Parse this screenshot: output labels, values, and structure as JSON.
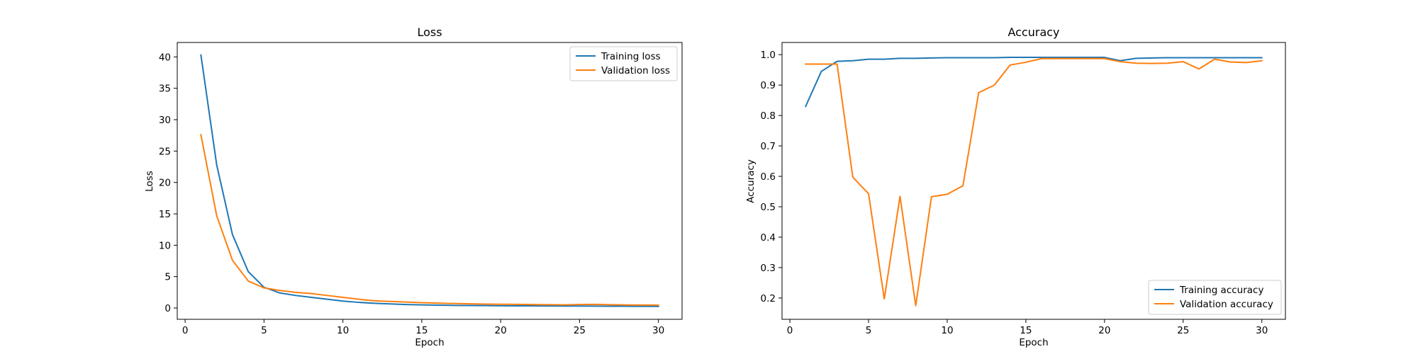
{
  "chart_data": [
    {
      "type": "line",
      "title": "Loss",
      "xlabel": "Epoch",
      "ylabel": "Loss",
      "xlim": [
        -0.5,
        31.5
      ],
      "ylim": [
        -1.8,
        42.3
      ],
      "xticks": [
        0,
        5,
        10,
        15,
        20,
        25,
        30
      ],
      "yticks": [
        0,
        5,
        10,
        15,
        20,
        25,
        30,
        35,
        40
      ],
      "grid": false,
      "legend_position": "upper right",
      "x": [
        1,
        2,
        3,
        4,
        5,
        6,
        7,
        8,
        9,
        10,
        11,
        12,
        13,
        14,
        15,
        16,
        17,
        18,
        19,
        20,
        21,
        22,
        23,
        24,
        25,
        26,
        27,
        28,
        29,
        30
      ],
      "series": [
        {
          "name": "Training loss",
          "color": "#1f77b4",
          "values": [
            40.3,
            22.8,
            11.7,
            5.8,
            3.3,
            2.4,
            2.0,
            1.7,
            1.4,
            1.1,
            0.9,
            0.75,
            0.65,
            0.55,
            0.5,
            0.45,
            0.42,
            0.4,
            0.38,
            0.36,
            0.35,
            0.34,
            0.33,
            0.32,
            0.31,
            0.3,
            0.29,
            0.28,
            0.27,
            0.26
          ]
        },
        {
          "name": "Validation loss",
          "color": "#ff7f0e",
          "values": [
            27.6,
            14.7,
            7.6,
            4.3,
            3.2,
            2.8,
            2.5,
            2.3,
            2.0,
            1.7,
            1.4,
            1.15,
            1.05,
            0.95,
            0.85,
            0.78,
            0.72,
            0.67,
            0.63,
            0.6,
            0.58,
            0.55,
            0.52,
            0.5,
            0.55,
            0.58,
            0.52,
            0.48,
            0.47,
            0.46
          ]
        }
      ]
    },
    {
      "type": "line",
      "title": "Accuracy",
      "xlabel": "Epoch",
      "ylabel": "Accuracy",
      "xlim": [
        -0.5,
        31.5
      ],
      "ylim": [
        0.13,
        1.04
      ],
      "xticks": [
        0,
        5,
        10,
        15,
        20,
        25,
        30
      ],
      "yticks": [
        0.2,
        0.3,
        0.4,
        0.5,
        0.6,
        0.7,
        0.8,
        0.9,
        1.0
      ],
      "grid": false,
      "legend_position": "lower right",
      "x": [
        1,
        2,
        3,
        4,
        5,
        6,
        7,
        8,
        9,
        10,
        11,
        12,
        13,
        14,
        15,
        16,
        17,
        18,
        19,
        20,
        21,
        22,
        23,
        24,
        25,
        26,
        27,
        28,
        29,
        30
      ],
      "series": [
        {
          "name": "Training accuracy",
          "color": "#1f77b4",
          "values": [
            0.83,
            0.945,
            0.978,
            0.98,
            0.985,
            0.985,
            0.988,
            0.988,
            0.989,
            0.99,
            0.99,
            0.99,
            0.99,
            0.991,
            0.991,
            0.991,
            0.991,
            0.991,
            0.991,
            0.991,
            0.98,
            0.988,
            0.989,
            0.99,
            0.99,
            0.99,
            0.99,
            0.99,
            0.99,
            0.99
          ]
        },
        {
          "name": "Validation accuracy",
          "color": "#ff7f0e",
          "values": [
            0.969,
            0.969,
            0.969,
            0.597,
            0.543,
            0.197,
            0.534,
            0.175,
            0.533,
            0.541,
            0.569,
            0.875,
            0.9,
            0.966,
            0.975,
            0.987,
            0.987,
            0.987,
            0.987,
            0.987,
            0.977,
            0.972,
            0.971,
            0.972,
            0.977,
            0.953,
            0.985,
            0.976,
            0.974,
            0.98
          ]
        }
      ]
    }
  ]
}
